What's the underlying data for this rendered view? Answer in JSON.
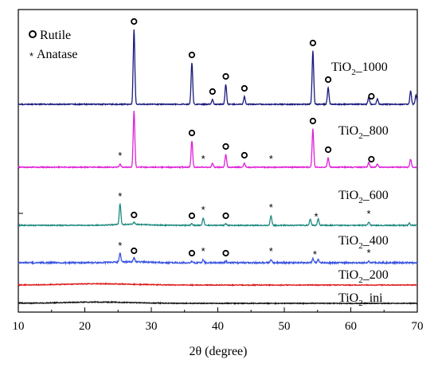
{
  "chart_data": {
    "type": "line",
    "title": "",
    "xlabel": "2θ (degree)",
    "ylabel": "",
    "xlim": [
      10,
      70
    ],
    "x_ticks": [
      "10",
      "20",
      "30",
      "40",
      "50",
      "60",
      "70"
    ],
    "grid": false,
    "legend": {
      "placement": "top-left",
      "entries": [
        {
          "symbol": "circle",
          "label": "Rutile"
        },
        {
          "symbol": "asterisk",
          "label": "Anatase"
        }
      ]
    },
    "series": [
      {
        "name": "TiO2_1000",
        "name_main": "TiO",
        "name_sub": "2",
        "name_tail": "_1000",
        "color": "#1a1a7e",
        "noise": 0.6,
        "peaks": [
          [
            27.4,
            94
          ],
          [
            36.1,
            52
          ],
          [
            39.2,
            6
          ],
          [
            41.2,
            25
          ],
          [
            44.0,
            10
          ],
          [
            54.3,
            67
          ],
          [
            56.6,
            21
          ],
          [
            62.7,
            9
          ],
          [
            64.0,
            7
          ],
          [
            69.0,
            17
          ],
          [
            69.8,
            12
          ]
        ],
        "rutile_markers": [
          27.4,
          36.1,
          39.2,
          41.2,
          44.0,
          54.3,
          56.6,
          63.1
        ],
        "anatase_markers": []
      },
      {
        "name": "TiO2_800",
        "name_main": "TiO",
        "name_sub": "2",
        "name_tail": "_800",
        "color": "#e020d8",
        "noise": 0.6,
        "peaks": [
          [
            25.3,
            4
          ],
          [
            27.4,
            71
          ],
          [
            36.1,
            33
          ],
          [
            39.2,
            5
          ],
          [
            41.2,
            16
          ],
          [
            44.0,
            5
          ],
          [
            54.3,
            48
          ],
          [
            56.6,
            12
          ],
          [
            62.7,
            6
          ],
          [
            64.0,
            4
          ],
          [
            69.0,
            10
          ]
        ],
        "rutile_markers": [
          36.1,
          41.2,
          44.0,
          54.3,
          56.6,
          63.1
        ],
        "anatase_markers": [
          25.3,
          37.8,
          48.0
        ]
      },
      {
        "name": "TiO2_600",
        "name_main": "TiO",
        "name_sub": "2",
        "name_tail": "_600",
        "color": "#1e8a80",
        "noise": 0.6,
        "peaks": [
          [
            25.3,
            26
          ],
          [
            27.4,
            3
          ],
          [
            36.1,
            2
          ],
          [
            37.8,
            9
          ],
          [
            41.2,
            2
          ],
          [
            48.0,
            12
          ],
          [
            53.9,
            8
          ],
          [
            55.1,
            8
          ],
          [
            62.7,
            4
          ],
          [
            68.8,
            3
          ]
        ],
        "rutile_markers": [
          27.4,
          36.1,
          41.2
        ],
        "anatase_markers": [
          25.3,
          37.8,
          48.0,
          54.8,
          62.7
        ]
      },
      {
        "name": "TiO2_400",
        "name_main": "TiO",
        "name_sub": "2",
        "name_tail": "_400",
        "color": "#3a55e0",
        "noise": 0.9,
        "peaks": [
          [
            25.3,
            11
          ],
          [
            27.4,
            5
          ],
          [
            36.1,
            2
          ],
          [
            37.8,
            4
          ],
          [
            41.2,
            2
          ],
          [
            48.0,
            4
          ],
          [
            54.3,
            5
          ],
          [
            55.1,
            4
          ],
          [
            62.7,
            2
          ]
        ],
        "rutile_markers": [
          27.4,
          36.1,
          41.2
        ],
        "anatase_markers": [
          25.3,
          37.8,
          48.0,
          54.6,
          62.7
        ]
      },
      {
        "name": "TiO2_200",
        "name_main": "TiO",
        "name_sub": "2",
        "name_tail": "_200",
        "color": "#dd1a1a",
        "noise": 0.5,
        "peaks": [],
        "rutile_markers": [],
        "anatase_markers": []
      },
      {
        "name": "TiO2_ini",
        "name_main": "TiO",
        "name_sub": "2",
        "name_tail": "_ini",
        "color": "#111111",
        "noise": 0.5,
        "peaks": [],
        "rutile_markers": [],
        "anatase_markers": []
      }
    ]
  }
}
